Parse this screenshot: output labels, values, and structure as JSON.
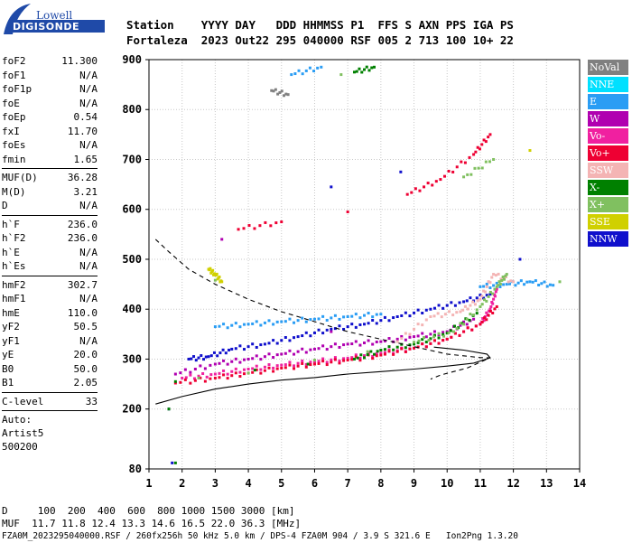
{
  "logo": {
    "line1": "Lowell",
    "line2": "DIGISONDE"
  },
  "header": {
    "row1": "Station    YYYY DAY   DDD HHMMSS P1  FFS S AXN PPS IGA PS",
    "row2": "Fortaleza  2023 Out22 295 040000 RSF 005 2 713 100 10+ 22"
  },
  "params": {
    "group1": [
      [
        "foF2",
        "11.300"
      ],
      [
        "foF1",
        "N/A"
      ],
      [
        "foF1p",
        "N/A"
      ],
      [
        "foE",
        "N/A"
      ],
      [
        "foEp",
        "0.54"
      ],
      [
        "fxI",
        "11.70"
      ],
      [
        "foEs",
        "N/A"
      ],
      [
        "fmin",
        "1.65"
      ]
    ],
    "group2": [
      [
        "MUF(D)",
        "36.28"
      ],
      [
        "M(D)",
        "3.21"
      ],
      [
        "D",
        "N/A"
      ]
    ],
    "group3": [
      [
        "h`F",
        "236.0"
      ],
      [
        "h`F2",
        "236.0"
      ],
      [
        "h`E",
        "N/A"
      ],
      [
        "h`Es",
        "N/A"
      ]
    ],
    "group4": [
      [
        "hmF2",
        "302.7"
      ],
      [
        "hmF1",
        "N/A"
      ],
      [
        "hmE",
        "110.0"
      ],
      [
        "yF2",
        "50.5"
      ],
      [
        "yF1",
        "N/A"
      ],
      [
        "yE",
        "20.0"
      ],
      [
        "B0",
        "50.0"
      ],
      [
        "B1",
        "2.05"
      ]
    ],
    "group5": [
      [
        "C-level",
        "33"
      ]
    ],
    "auto": [
      "Auto:",
      "Artist5",
      "500200"
    ]
  },
  "legend": [
    {
      "label": "NoVal",
      "color": "#808080"
    },
    {
      "label": "NNE",
      "color": "#00e0ff"
    },
    {
      "label": "E",
      "color": "#2a9df4"
    },
    {
      "label": "W",
      "color": "#b000b0"
    },
    {
      "label": "Vo-",
      "color": "#f020a0"
    },
    {
      "label": "Vo+",
      "color": "#ee0033"
    },
    {
      "label": "SSW",
      "color": "#f4b4b4"
    },
    {
      "label": "X-",
      "color": "#008000"
    },
    {
      "label": "X+",
      "color": "#80c060"
    },
    {
      "label": "SSE",
      "color": "#d0d000"
    },
    {
      "label": "NNW",
      "color": "#1010cc"
    }
  ],
  "footer": {
    "row1": "D     100  200  400  600  800 1000 1500 3000 [km]",
    "row2": "MUF  11.7 11.8 12.4 13.3 14.6 16.5 22.0 36.3 [MHz]",
    "row3": "FZA0M_2023295040000.RSF / 260fx256h 50 kHz 5.0 km / DPS-4 FZA0M 904 / 3.9 S 321.6 E   Ion2Png 1.3.20"
  },
  "chart_data": {
    "type": "scatter",
    "xlim": [
      1,
      14
    ],
    "ylim": [
      80,
      900
    ],
    "x_ticks": [
      1,
      2,
      3,
      4,
      5,
      6,
      7,
      8,
      9,
      10,
      11,
      12,
      13,
      14
    ],
    "y_ticks": [
      80,
      200,
      300,
      400,
      500,
      600,
      700,
      800,
      900
    ],
    "grid": true,
    "legend_position": "right",
    "series": [
      {
        "name": "NNW",
        "color": "#1010cc",
        "points": [
          [
            2.2,
            300
          ],
          [
            2.8,
            305
          ],
          [
            3.5,
            320
          ],
          [
            4.5,
            330
          ],
          [
            5.5,
            345
          ],
          [
            6.5,
            360
          ],
          [
            7.5,
            370
          ],
          [
            8.5,
            385
          ],
          [
            9.5,
            400
          ],
          [
            10.5,
            415
          ],
          [
            11.3,
            430
          ],
          [
            12.2,
            500
          ],
          [
            6.5,
            645
          ],
          [
            8.6,
            675
          ],
          [
            1.6,
            200
          ],
          [
            1.7,
            92
          ]
        ]
      },
      {
        "name": "E",
        "color": "#2a9df4",
        "points": [
          [
            3,
            365
          ],
          [
            4,
            370
          ],
          [
            5,
            375
          ],
          [
            6,
            380
          ],
          [
            7,
            385
          ],
          [
            8,
            390
          ],
          [
            11,
            445
          ],
          [
            11.8,
            450
          ],
          [
            12.5,
            455
          ],
          [
            13.2,
            448
          ],
          [
            5.3,
            870
          ],
          [
            6.2,
            885
          ]
        ]
      },
      {
        "name": "W",
        "color": "#b000b0",
        "points": [
          [
            1.8,
            270
          ],
          [
            3,
            290
          ],
          [
            4,
            300
          ],
          [
            5,
            310
          ],
          [
            6,
            320
          ],
          [
            7,
            330
          ],
          [
            8,
            335
          ],
          [
            9,
            345
          ],
          [
            10,
            355
          ],
          [
            10.8,
            380
          ],
          [
            6.5,
            355
          ],
          [
            3.2,
            540
          ]
        ]
      },
      {
        "name": "Vo-",
        "color": "#f020a0",
        "points": [
          [
            2,
            262
          ],
          [
            3,
            270
          ],
          [
            4,
            280
          ],
          [
            5,
            288
          ],
          [
            6,
            295
          ],
          [
            7,
            302
          ],
          [
            8,
            312
          ],
          [
            9,
            322
          ],
          [
            10,
            340
          ],
          [
            11,
            370
          ],
          [
            11.3,
            400
          ],
          [
            11.5,
            440
          ]
        ]
      },
      {
        "name": "Vo+",
        "color": "#ee0033",
        "points": [
          [
            1.8,
            252
          ],
          [
            3,
            262
          ],
          [
            4,
            272
          ],
          [
            5,
            282
          ],
          [
            6,
            290
          ],
          [
            7,
            298
          ],
          [
            8,
            308
          ],
          [
            9,
            322
          ],
          [
            10,
            340
          ],
          [
            11,
            370
          ],
          [
            11.5,
            405
          ],
          [
            3.7,
            560
          ],
          [
            5,
            575
          ],
          [
            7,
            595
          ],
          [
            8.8,
            630
          ],
          [
            9.8,
            660
          ],
          [
            10.8,
            710
          ],
          [
            11.3,
            750
          ]
        ]
      },
      {
        "name": "SSW",
        "color": "#f4b4b4",
        "points": [
          [
            8.5,
            335
          ],
          [
            9.5,
            385
          ],
          [
            10.4,
            395
          ],
          [
            11,
            420
          ],
          [
            11.4,
            470
          ],
          [
            12,
            455
          ]
        ]
      },
      {
        "name": "X-",
        "color": "#008000",
        "points": [
          [
            1.8,
            255
          ],
          [
            4.2,
            278
          ],
          [
            5.8,
            290
          ],
          [
            7.2,
            300
          ],
          [
            8,
            318
          ],
          [
            9,
            330
          ],
          [
            10,
            352
          ],
          [
            10.9,
            392
          ],
          [
            7.2,
            875
          ],
          [
            7.8,
            885
          ],
          [
            1.8,
            92
          ],
          [
            1.6,
            200
          ]
        ]
      },
      {
        "name": "X+",
        "color": "#80c060",
        "points": [
          [
            2.5,
            262
          ],
          [
            4,
            272
          ],
          [
            6,
            298
          ],
          [
            7.6,
            315
          ],
          [
            9,
            334
          ],
          [
            10.2,
            355
          ],
          [
            11,
            405
          ],
          [
            11.5,
            445
          ],
          [
            11.8,
            470
          ],
          [
            13.4,
            455
          ],
          [
            11.4,
            700
          ],
          [
            10.5,
            665
          ],
          [
            3,
            458
          ],
          [
            6.8,
            870
          ]
        ]
      },
      {
        "name": "SSE",
        "color": "#d0d000",
        "points": [
          [
            12.5,
            718
          ],
          [
            2.8,
            480
          ],
          [
            3,
            470
          ],
          [
            3.2,
            455
          ]
        ]
      },
      {
        "name": "NoVal",
        "color": "#808080",
        "points": [
          [
            4.7,
            838
          ],
          [
            5.2,
            830
          ]
        ]
      }
    ],
    "profile": {
      "name": "profile",
      "style": "solid",
      "points": [
        [
          1.2,
          210
        ],
        [
          2,
          225
        ],
        [
          3,
          240
        ],
        [
          4,
          250
        ],
        [
          5,
          258
        ],
        [
          6,
          263
        ],
        [
          7,
          270
        ],
        [
          8,
          275
        ],
        [
          9,
          280
        ],
        [
          10,
          286
        ],
        [
          10.8,
          292
        ],
        [
          11.3,
          302.7
        ],
        [
          11.2,
          310
        ],
        [
          10.5,
          318
        ],
        [
          9.6,
          324
        ]
      ]
    },
    "model": {
      "name": "model",
      "style": "dashed",
      "points": [
        [
          1.2,
          540
        ],
        [
          1.6,
          515
        ],
        [
          2.2,
          480
        ],
        [
          3,
          450
        ],
        [
          4,
          420
        ],
        [
          5,
          395
        ],
        [
          6,
          375
        ],
        [
          7,
          355
        ],
        [
          8,
          340
        ],
        [
          9,
          325
        ],
        [
          10,
          310
        ],
        [
          11,
          303
        ],
        [
          11.3,
          302.7
        ],
        [
          10.6,
          282
        ],
        [
          9.8,
          268
        ],
        [
          9.5,
          260
        ]
      ]
    }
  }
}
